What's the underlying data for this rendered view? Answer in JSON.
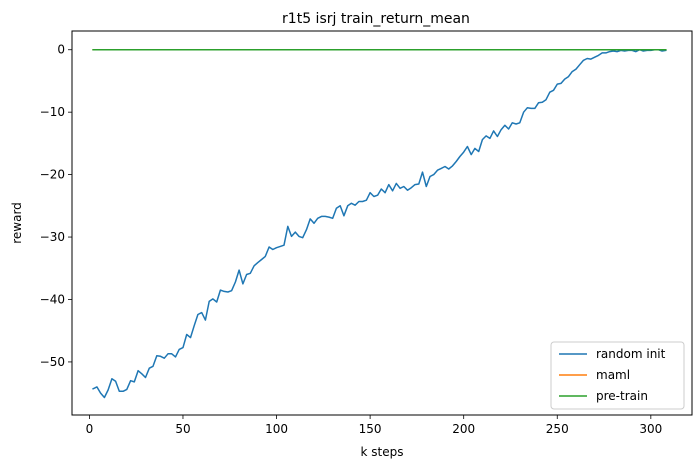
{
  "chart_data": {
    "type": "line",
    "title": "r1t5 isrj train_return_mean",
    "xlabel": "k steps",
    "ylabel": "reward",
    "xlim": [
      -9.3,
      322
    ],
    "ylim": [
      -58.5,
      3.0
    ],
    "xticks": [
      0,
      50,
      100,
      150,
      200,
      250,
      300
    ],
    "yticks": [
      0,
      -10,
      -20,
      -30,
      -40,
      -50
    ],
    "ytick_labels": [
      "0",
      "−10",
      "−20",
      "−30",
      "−40",
      "−50"
    ],
    "xtick_labels": [
      "0",
      "50",
      "100",
      "150",
      "200",
      "250",
      "300"
    ],
    "grid": false,
    "legend_position": "lower right",
    "series": [
      {
        "name": "random init",
        "color": "#1f77b4",
        "x": [
          2,
          4,
          6,
          8,
          10,
          12,
          14,
          16,
          18,
          20,
          22,
          24,
          26,
          28,
          30,
          32,
          34,
          36,
          38,
          40,
          42,
          44,
          46,
          48,
          50,
          52,
          54,
          56,
          58,
          60,
          62,
          64,
          66,
          68,
          70,
          72,
          74,
          76,
          78,
          80,
          82,
          84,
          86,
          88,
          90,
          92,
          94,
          96,
          98,
          100,
          102,
          104,
          106,
          108,
          110,
          112,
          114,
          116,
          118,
          120,
          122,
          124,
          126,
          128,
          130,
          132,
          134,
          136,
          138,
          140,
          142,
          144,
          146,
          148,
          150,
          152,
          154,
          156,
          158,
          160,
          162,
          164,
          166,
          168,
          170,
          172,
          174,
          176,
          178,
          180,
          182,
          184,
          186,
          188,
          190,
          192,
          194,
          196,
          198,
          200,
          202,
          204,
          206,
          208,
          210,
          212,
          214,
          216,
          218,
          220,
          222,
          224,
          226,
          228,
          230,
          232,
          234,
          236,
          238,
          240,
          242,
          244,
          246,
          248,
          250,
          252,
          254,
          256,
          258,
          260,
          262,
          264,
          266,
          268,
          270,
          272,
          274,
          276,
          278,
          280,
          282,
          284,
          286,
          288,
          290,
          292,
          294,
          296,
          298,
          300,
          302,
          304,
          306,
          308
        ],
        "y": [
          -54.3,
          -54.0,
          -55.0,
          -55.7,
          -54.5,
          -52.7,
          -53.1,
          -54.7,
          -54.7,
          -54.4,
          -53.0,
          -53.2,
          -51.4,
          -51.9,
          -52.5,
          -51.0,
          -50.7,
          -49.0,
          -49.1,
          -49.4,
          -48.7,
          -48.7,
          -49.2,
          -48.0,
          -47.7,
          -45.6,
          -46.1,
          -44.2,
          -42.4,
          -42.1,
          -43.3,
          -40.3,
          -39.9,
          -40.4,
          -38.5,
          -38.7,
          -38.8,
          -38.6,
          -37.2,
          -35.3,
          -37.5,
          -36.0,
          -35.8,
          -34.6,
          -34.1,
          -33.6,
          -33.1,
          -31.6,
          -32.0,
          -31.7,
          -31.5,
          -31.3,
          -28.3,
          -29.9,
          -29.2,
          -29.9,
          -30.1,
          -28.8,
          -27.1,
          -27.8,
          -27.0,
          -26.7,
          -26.7,
          -26.8,
          -27.0,
          -25.4,
          -25.0,
          -26.6,
          -25.0,
          -24.6,
          -24.9,
          -24.3,
          -24.3,
          -24.1,
          -22.9,
          -23.5,
          -23.3,
          -22.3,
          -22.9,
          -21.6,
          -22.6,
          -21.4,
          -22.2,
          -21.9,
          -22.5,
          -22.1,
          -21.6,
          -21.5,
          -19.6,
          -21.9,
          -20.3,
          -20.0,
          -19.3,
          -19.0,
          -18.7,
          -19.1,
          -18.6,
          -17.9,
          -17.1,
          -16.4,
          -15.5,
          -16.8,
          -15.8,
          -16.3,
          -14.4,
          -13.8,
          -14.2,
          -13.0,
          -13.9,
          -12.8,
          -12.1,
          -12.7,
          -11.7,
          -11.9,
          -11.7,
          -10.0,
          -9.3,
          -9.4,
          -9.4,
          -8.5,
          -8.4,
          -8.0,
          -6.8,
          -6.5,
          -5.5,
          -5.4,
          -4.7,
          -4.3,
          -3.5,
          -3.1,
          -2.4,
          -1.7,
          -1.4,
          -1.5,
          -1.2,
          -0.9,
          -0.5,
          -0.5,
          -0.3,
          -0.2,
          -0.3,
          -0.1,
          -0.2,
          -0.1,
          -0.1,
          -0.3,
          0.0,
          -0.2,
          -0.1,
          -0.1,
          0.0,
          0.0,
          -0.2,
          -0.1
        ]
      },
      {
        "name": "maml",
        "color": "#ff7f0e",
        "x": [
          2,
          308
        ],
        "y": [
          0.0,
          0.0
        ]
      },
      {
        "name": "pre-train",
        "color": "#2ca02c",
        "x": [
          2,
          308
        ],
        "y": [
          0.0,
          0.0
        ]
      }
    ]
  }
}
